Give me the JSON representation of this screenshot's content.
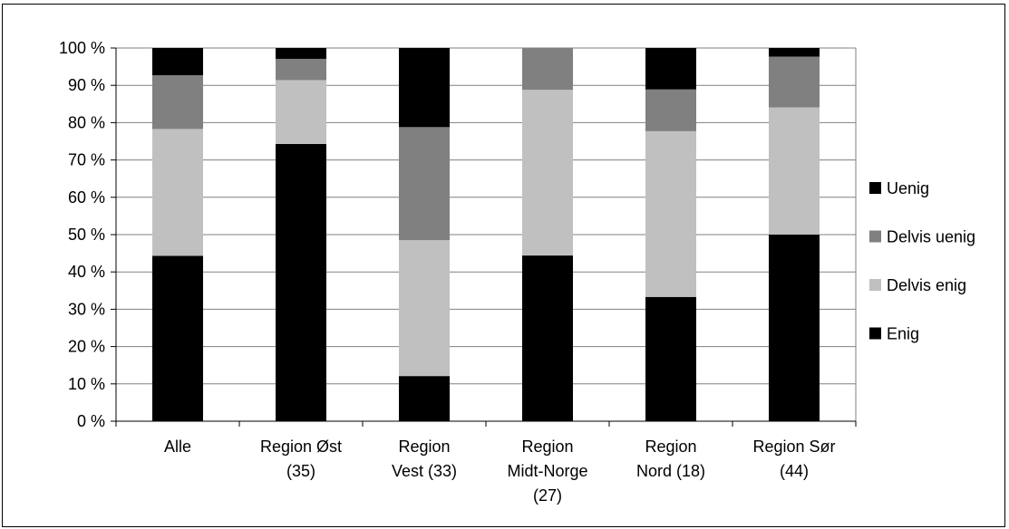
{
  "chart_data": {
    "type": "bar",
    "stacked": true,
    "percent": true,
    "categories": [
      [
        "Alle"
      ],
      [
        "Region Øst",
        "(35)"
      ],
      [
        "Region",
        "Vest (33)"
      ],
      [
        "Region",
        "Midt-Norge",
        "(27)"
      ],
      [
        "Region",
        "Nord (18)"
      ],
      [
        "Region Sør",
        "(44)"
      ]
    ],
    "series": [
      {
        "name": "Enig",
        "color": "#000000",
        "values": [
          44.3,
          74.3,
          12.1,
          44.4,
          33.3,
          50.0
        ]
      },
      {
        "name": "Delvis enig",
        "color": "#c0c0c0",
        "values": [
          34.0,
          17.1,
          36.4,
          44.4,
          44.4,
          34.1
        ]
      },
      {
        "name": "Delvis uenig",
        "color": "#808080",
        "values": [
          14.4,
          5.7,
          30.3,
          11.2,
          11.2,
          13.6
        ]
      },
      {
        "name": "Uenig",
        "color": "#000000",
        "values": [
          7.3,
          2.9,
          21.2,
          0.0,
          11.1,
          2.3
        ]
      }
    ],
    "legend_order": [
      "Uenig",
      "Delvis uenig",
      "Delvis enig",
      "Enig"
    ],
    "y_ticks": [
      "0 %",
      "10 %",
      "20 %",
      "30 %",
      "40 %",
      "50 %",
      "60 %",
      "70 %",
      "80 %",
      "90 %",
      "100 %"
    ],
    "ylim": [
      0,
      100
    ],
    "grid": true,
    "legend_position": "right",
    "title": "",
    "xlabel": "",
    "ylabel": ""
  }
}
